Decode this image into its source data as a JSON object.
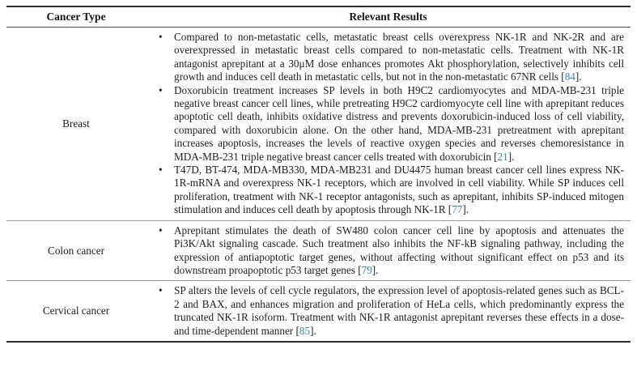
{
  "table": {
    "headers": {
      "cancer_type": "Cancer Type",
      "relevant_results": "Relevant Results"
    },
    "rows": [
      {
        "cancer_type": "Breast",
        "bullets": [
          {
            "text": "Compared to non-metastatic cells, metastatic breast cells overexpress NK-1R and NK-2R and are overexpressed in metastatic breast cells compared to non-metastatic cells. Treatment with NK-1R antagonist aprepitant at a 30μM dose enhances promotes Akt phosphorylation, selectively inhibits cell growth and induces cell death in metastatic cells, but not in the non-metastatic 67NR cells",
            "ref": "84"
          },
          {
            "text": "Doxorubicin treatment increases SP levels in both H9C2 cardiomyocytes and MDA-MB-231 triple negative breast cancer cell lines, while pretreating H9C2 cardiomyocyte cell line with aprepitant reduces apoptotic cell death, inhibits oxidative distress and prevents doxorubicin-induced loss of cell viability, compared with doxorubicin alone. On the other hand, MDA-MB-231 pretreatment with aprepitant increases apoptosis, increases the levels of reactive oxygen species and reverses chemoresistance in MDA-MB-231 triple negative breast cancer cells treated with doxorubicin",
            "ref": "21"
          },
          {
            "text": "T47D, BT-474, MDA-MB330, MDA-MB231 and DU4475 human breast cancer cell lines express NK-1R-mRNA and overexpress NK-1 receptors, which are involved in cell viability. While SP induces cell proliferation, treatment with NK-1 receptor antagonists, such as aprepitant, inhibits SP-induced mitogen stimulation and induces cell death by apoptosis through NK-1R",
            "ref": "77"
          }
        ]
      },
      {
        "cancer_type": "Colon cancer",
        "bullets": [
          {
            "text": "Aprepitant stimulates the death of SW480 colon cancer cell line by apoptosis and attenuates the Pi3K/Akt signaling cascade. Such treatment also inhibits the NF-kB signaling pathway, including the expression of antiapoptotic target genes, without affecting without significant effect on p53 and its downstream proapoptotic p53 target genes",
            "ref": "79"
          }
        ]
      },
      {
        "cancer_type": "Cervical cancer",
        "bullets": [
          {
            "text": "SP alters the levels of cell cycle regulators, the expression level of apoptosis-related genes such as BCL-2 and BAX, and enhances migration and proliferation of HeLa cells, which predominantly express the truncated NK-1R isoform. Treatment with NK-1R antagonist aprepitant reverses these effects in a dose- and time-dependent manner",
            "ref": "85"
          }
        ]
      }
    ]
  },
  "icons": {
    "bullet": "•"
  },
  "colors": {
    "citation": "#3d87ae",
    "body_text": "#1e1e1e",
    "rule_heavy": "#2f2f2f",
    "rule_light": "#9a9a9a"
  }
}
